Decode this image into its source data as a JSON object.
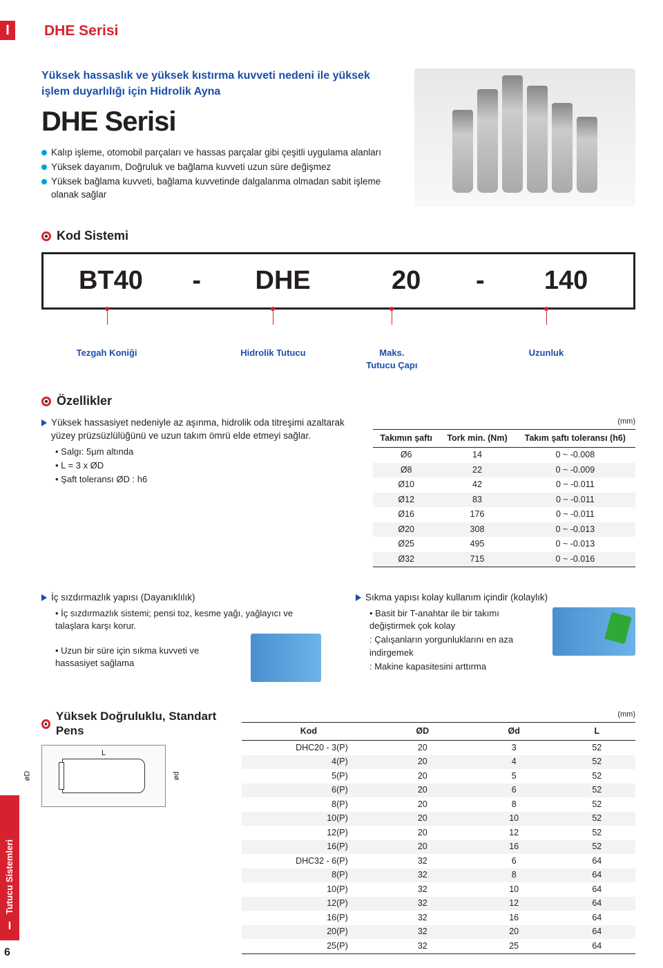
{
  "page": {
    "side_letter": "I",
    "side_category": "Tutucu Sistemleri",
    "side_letter2": "I",
    "number": "6",
    "series_title": "DHE Serisi"
  },
  "intro": {
    "sub": "Yüksek hassaslık ve yüksek kıstırma kuvveti nedeni ile yüksek işlem duyarlılığı için Hidrolik Ayna",
    "big": "DHE Serisi",
    "bullets": [
      "Kalıp işleme, otomobil parçaları ve hassas parçalar gibi çeşitli uygulama alanları",
      "Yüksek dayanım, Doğruluk ve bağlama kuvveti uzun süre değişmez",
      "Yüksek bağlama kuvveti, bağlama kuvvetinde dalgalanma olmadan sabit işleme olanak sağlar"
    ]
  },
  "code_system": {
    "title": "Kod Sistemi",
    "cells": [
      "BT40",
      "-",
      "DHE",
      "20",
      "-",
      "140"
    ],
    "labels": {
      "c0": "Tezgah Koniği",
      "c2": "Hidrolik Tutucu",
      "c3": "Maks.\nTutucu Çapı",
      "c5": "Uzunluk"
    }
  },
  "features": {
    "title": "Özellikler",
    "left": {
      "tri": "Yüksek hassasiyet nedeniyle az aşınma, hidrolik oda titreşimi azaltarak yüzey prüzsüzlülüğünü ve uzun takım ömrü elde etmeyi sağlar.",
      "subs": [
        "• Salgı: 5µm altında",
        "• L = 3 x ØD",
        "• Şaft toleransı ØD : h6"
      ]
    },
    "right": {
      "unit": "(mm)",
      "headers": [
        "Takımın şaftı",
        "Tork min. (Nm)",
        "Takım şaftı toleransı (h6)"
      ],
      "rows": [
        [
          "Ø6",
          "14",
          "0 ~ -0.008"
        ],
        [
          "Ø8",
          "22",
          "0 ~ -0.009"
        ],
        [
          "Ø10",
          "42",
          "0 ~ -0.011"
        ],
        [
          "Ø12",
          "83",
          "0 ~ -0.011"
        ],
        [
          "Ø16",
          "176",
          "0 ~ -0.011"
        ],
        [
          "Ø20",
          "308",
          "0 ~ -0.013"
        ],
        [
          "Ø25",
          "495",
          "0 ~ -0.013"
        ],
        [
          "Ø32",
          "715",
          "0 ~ -0.016"
        ]
      ]
    }
  },
  "seal": {
    "tri": "İç sızdırmazlık yapısı (Dayanıklılık)",
    "subs": [
      "• İç sızdırmazlık sistemi; pensi toz, kesme yağı, yağlayıcı ve talaşlara karşı korur.",
      "• Uzun bir süre için sıkma kuvveti ve hassasiyet sağlama"
    ]
  },
  "clamp": {
    "tri": "Sıkma yapısı kolay kullanım içindir (kolaylık)",
    "subs": [
      "• Basit bir T-anahtar ile bir takımı değiştirmek çok kolay",
      ": Çalışanların yorgunluklarını en aza indirgemek",
      ": Makine kapasitesini arttırma"
    ]
  },
  "pens": {
    "title": "Yüksek Doğruluklu, Standart Pens",
    "diag": {
      "L": "L",
      "D": "øD",
      "d": "ød"
    },
    "unit": "(mm)",
    "headers": [
      "Kod",
      "ØD",
      "Ød",
      "L"
    ],
    "rows": [
      [
        "DHC20 - 3(P)",
        "20",
        "3",
        "52"
      ],
      [
        "4(P)",
        "20",
        "4",
        "52"
      ],
      [
        "5(P)",
        "20",
        "5",
        "52"
      ],
      [
        "6(P)",
        "20",
        "6",
        "52"
      ],
      [
        "8(P)",
        "20",
        "8",
        "52"
      ],
      [
        "10(P)",
        "20",
        "10",
        "52"
      ],
      [
        "12(P)",
        "20",
        "12",
        "52"
      ],
      [
        "16(P)",
        "20",
        "16",
        "52"
      ],
      [
        "DHC32 - 6(P)",
        "32",
        "6",
        "64"
      ],
      [
        "8(P)",
        "32",
        "8",
        "64"
      ],
      [
        "10(P)",
        "32",
        "10",
        "64"
      ],
      [
        "12(P)",
        "32",
        "12",
        "64"
      ],
      [
        "16(P)",
        "32",
        "16",
        "64"
      ],
      [
        "20(P)",
        "32",
        "20",
        "64"
      ],
      [
        "25(P)",
        "32",
        "25",
        "64"
      ]
    ]
  },
  "colors": {
    "brand_red": "#d8212f",
    "brand_blue": "#1a4ea8",
    "dot_cyan": "#00a3d9"
  }
}
